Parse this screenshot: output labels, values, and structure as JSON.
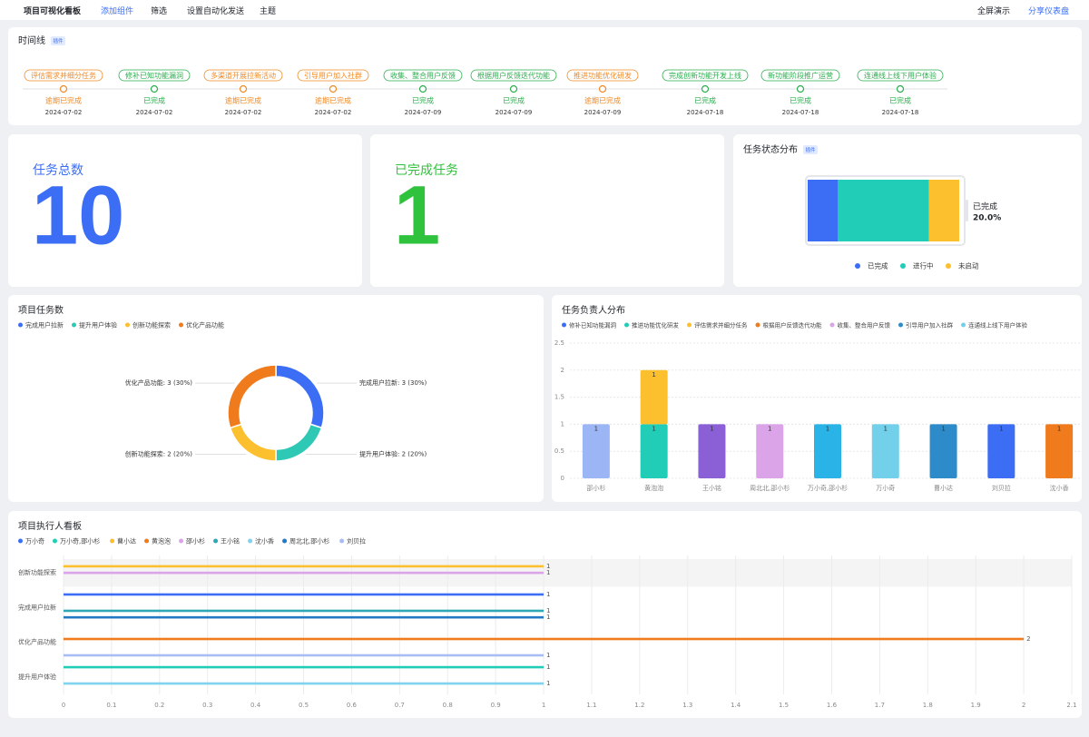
{
  "toolbar": {
    "title": "项目可视化看板",
    "buttons": [
      "添加组件",
      "筛选",
      "设置自动化发送",
      "主题"
    ],
    "right_buttons": [
      "全屏演示",
      "分享仪表盘"
    ]
  },
  "timeline": {
    "title": "时间线",
    "tag": "插件",
    "items": [
      {
        "label": "评估需求并细分任务",
        "status": "逾期已完成",
        "date": "2024-07-02",
        "color": "#f08a24"
      },
      {
        "label": "修补已知功能漏洞",
        "status": "已完成",
        "date": "2024-07-02",
        "color": "#2aae4e"
      },
      {
        "label": "多渠道开展拉新活动",
        "status": "逾期已完成",
        "date": "2024-07-02",
        "color": "#f08a24"
      },
      {
        "label": "引导用户加入社群",
        "status": "逾期已完成",
        "date": "2024-07-02",
        "color": "#f08a24"
      },
      {
        "label": "收集、整合用户反馈",
        "status": "已完成",
        "date": "2024-07-09",
        "color": "#2aae4e"
      },
      {
        "label": "根据用户反馈迭代功能",
        "status": "已完成",
        "date": "2024-07-09",
        "color": "#2aae4e"
      },
      {
        "label": "推进功能优化研发",
        "status": "逾期已完成",
        "date": "2024-07-09",
        "color": "#f08a24"
      },
      {
        "label": "完成创新功能开发上线",
        "status": "已完成",
        "date": "2024-07-18",
        "color": "#2aae4e"
      },
      {
        "label": "新功能阶段推广运营",
        "status": "已完成",
        "date": "2024-07-18",
        "color": "#2aae4e"
      },
      {
        "label": "连通线上线下用户体验",
        "status": "已完成",
        "date": "2024-07-18",
        "color": "#2aae4e"
      }
    ]
  },
  "cards": [
    {
      "title": "任务总数",
      "value": 10,
      "color": "#3b6ef5"
    },
    {
      "title": "已完成任务",
      "value": 1,
      "color": "#2fc23c"
    }
  ],
  "chart_data": [
    {
      "type": "progress",
      "title": "任务状态分布",
      "tag": "插件",
      "series": [
        {
          "name": "已完成",
          "color": "#3b6ef5",
          "values": [
            20
          ],
          "value_labels": [
            "20.0%"
          ]
        },
        {
          "name": "进行中",
          "color": "#22cdb8",
          "values": [
            60
          ]
        },
        {
          "name": "未启动",
          "color": "#fcc02f",
          "values": [
            20
          ]
        }
      ]
    },
    {
      "type": "donut",
      "title": "项目任务数",
      "categories": [
        "完成用户拉新",
        "提升用户体验",
        "创新功能探索",
        "优化产品功能"
      ],
      "values": [
        3,
        2,
        2,
        3
      ],
      "value_labels": [
        "完成用户拉新: 3 (30%)",
        "提升用户体验: 2 (20%)",
        "创新功能探索: 2 (20%)",
        "优化产品功能: 3 (30%)"
      ],
      "colors": [
        "#3b6ef5",
        "#2ec9b5",
        "#fcc02f",
        "#f07b1d"
      ]
    },
    {
      "type": "bar",
      "title": "任务负责人分布",
      "stacked": true,
      "categories": [
        "邵小杉",
        "黄泡泡",
        "王小铭",
        "周北北,邵小杉",
        "万小奇,邵小杉",
        "万小奇",
        "曹小达",
        "刘贝拉",
        "沈小香"
      ],
      "ylim": [
        0,
        2.5
      ],
      "yticks": [
        0,
        0.5,
        1,
        1.5,
        2,
        2.5
      ],
      "grid": true,
      "series": [
        {
          "name": "修补已知功能漏洞",
          "color": "#3b6ef5",
          "values": [
            null,
            null,
            null,
            null,
            null,
            null,
            null,
            1,
            null
          ]
        },
        {
          "name": "推进功能优化研发",
          "color": "#22cdb8",
          "values": [
            null,
            1,
            null,
            null,
            null,
            null,
            null,
            null,
            null
          ]
        },
        {
          "name": "评估需求并细分任务",
          "color": "#fcc02f",
          "values": [
            null,
            1,
            null,
            null,
            null,
            null,
            null,
            null,
            null
          ]
        },
        {
          "name": "根据用户反馈迭代功能",
          "color": "#f07b1d",
          "values": [
            null,
            null,
            null,
            null,
            null,
            null,
            null,
            null,
            1
          ]
        },
        {
          "name": "收集、整合用户反馈",
          "color": "#dba3e8",
          "values": [
            null,
            null,
            null,
            1,
            null,
            null,
            null,
            null,
            null
          ]
        },
        {
          "name": "引导用户加入社群",
          "color": "#2e8bc9",
          "values": [
            null,
            null,
            null,
            null,
            null,
            null,
            1,
            null,
            null
          ]
        },
        {
          "name": "连通线上线下用户体验",
          "color": "#72d0ea",
          "values": [
            null,
            null,
            null,
            null,
            null,
            1,
            null,
            null,
            null
          ]
        },
        {
          "color": "#9bb5f5",
          "values": [
            1,
            null,
            null,
            null,
            null,
            null,
            null,
            null,
            null
          ]
        },
        {
          "color": "#8b5fd6",
          "values": [
            null,
            null,
            1,
            null,
            null,
            null,
            null,
            null,
            null
          ]
        },
        {
          "color": "#29b3e6",
          "values": [
            null,
            null,
            null,
            null,
            1,
            null,
            null,
            null,
            null
          ]
        }
      ]
    },
    {
      "type": "hbar",
      "title": "项目执行人看板",
      "categories": [
        "创新功能探索",
        "完成用户拉新",
        "优化产品功能",
        "提升用户体验"
      ],
      "xlim": [
        0,
        2.1
      ],
      "xticks": [
        0,
        0.1,
        0.2,
        0.3,
        0.4,
        0.5,
        0.6,
        0.7,
        0.8,
        0.9,
        1,
        1.1,
        1.2,
        1.3,
        1.4,
        1.5,
        1.6,
        1.7,
        1.8,
        1.9,
        2,
        2.1
      ],
      "grid": true,
      "series": [
        {
          "name": "万小奇",
          "color": "#3b6ef5",
          "values": [
            null,
            1,
            null,
            null
          ]
        },
        {
          "name": "万小奇,邵小杉",
          "color": "#22cdb8",
          "values": [
            null,
            null,
            null,
            1
          ]
        },
        {
          "name": "曹小达",
          "color": "#fcc02f",
          "values": [
            1,
            null,
            null,
            null
          ]
        },
        {
          "name": "黄泡泡",
          "color": "#f07b1d",
          "values": [
            null,
            null,
            2,
            null
          ]
        },
        {
          "name": "邵小杉",
          "color": "#dba3e8",
          "values": [
            1,
            null,
            null,
            null
          ]
        },
        {
          "name": "王小铭",
          "color": "#2ea8b5",
          "values": [
            null,
            1,
            null,
            null
          ]
        },
        {
          "name": "沈小香",
          "color": "#7fd3ee",
          "values": [
            null,
            null,
            null,
            1
          ]
        },
        {
          "name": "周北北,邵小杉",
          "color": "#2479c4",
          "values": [
            null,
            1,
            null,
            null
          ]
        },
        {
          "name": "刘贝拉",
          "color": "#a9bdf5",
          "values": [
            null,
            null,
            1,
            null
          ]
        }
      ]
    }
  ]
}
